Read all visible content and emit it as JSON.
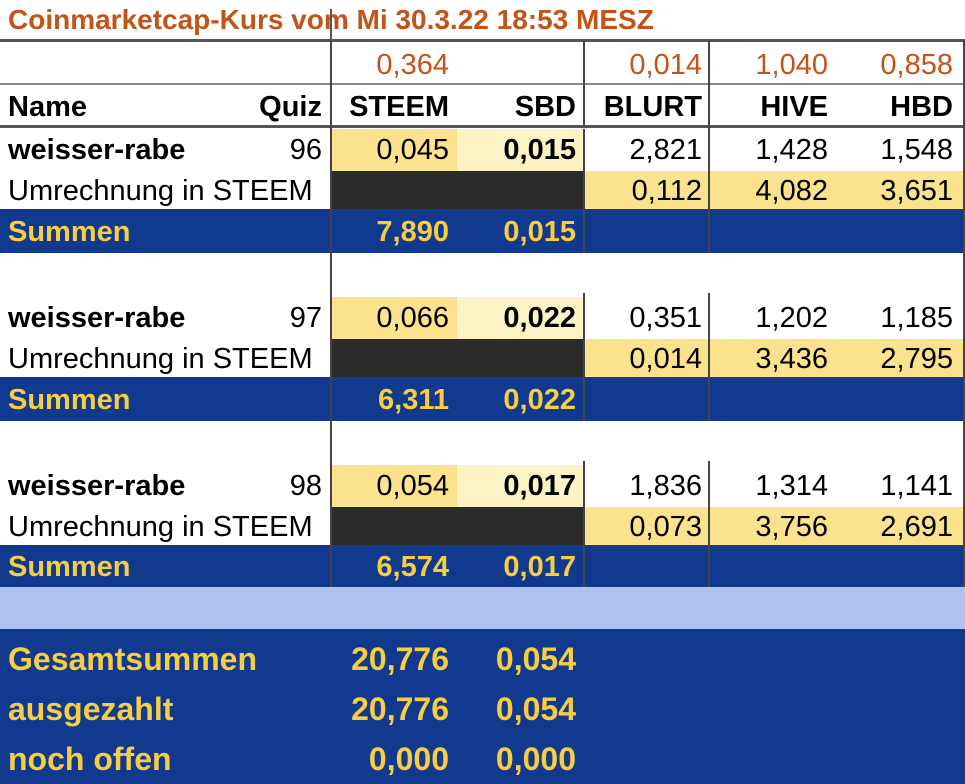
{
  "title": "Coinmarketcap-Kurs vom Mi 30.3.22 18:53 MESZ",
  "rates": {
    "steem": "0,364",
    "blurt": "0,014",
    "hive": "1,040",
    "hbd": "0,858"
  },
  "header": {
    "name": "Name",
    "quiz": "Quiz",
    "steem": "STEEM",
    "sbd": "SBD",
    "blurt": "BLURT",
    "hive": "HIVE",
    "hbd": "HBD"
  },
  "blocks": [
    {
      "name": "weisser-rabe",
      "quiz": "96",
      "steem": "0,045",
      "sbd": "0,015",
      "blurt": "2,821",
      "hive": "1,428",
      "hbd": "1,548",
      "conv_label": "Umrechnung in STEEM",
      "conv_blurt": "0,112",
      "conv_hive": "4,082",
      "conv_hbd": "3,651",
      "sum_label": "Summen",
      "sum_steem": "7,890",
      "sum_sbd": "0,015"
    },
    {
      "name": "weisser-rabe",
      "quiz": "97",
      "steem": "0,066",
      "sbd": "0,022",
      "blurt": "0,351",
      "hive": "1,202",
      "hbd": "1,185",
      "conv_label": "Umrechnung in STEEM",
      "conv_blurt": "0,014",
      "conv_hive": "3,436",
      "conv_hbd": "2,795",
      "sum_label": "Summen",
      "sum_steem": "6,311",
      "sum_sbd": "0,022"
    },
    {
      "name": "weisser-rabe",
      "quiz": "98",
      "steem": "0,054",
      "sbd": "0,017",
      "blurt": "1,836",
      "hive": "1,314",
      "hbd": "1,141",
      "conv_label": "Umrechnung in STEEM",
      "conv_blurt": "0,073",
      "conv_hive": "3,756",
      "conv_hbd": "2,691",
      "sum_label": "Summen",
      "sum_steem": "6,574",
      "sum_sbd": "0,017"
    }
  ],
  "totals": [
    {
      "label": "Gesamtsummen",
      "steem": "20,776",
      "sbd": "0,054"
    },
    {
      "label": "ausgezahlt",
      "steem": "20,776",
      "sbd": "0,054"
    },
    {
      "label": "noch offen",
      "steem": "0,000",
      "sbd": "0,000"
    }
  ],
  "colors": {
    "accent_orange": "#c2541a",
    "blue": "#113a8f",
    "light_blue": "#adc3ec",
    "yellow": "#fbe38d",
    "gold_text": "#f7cd42"
  }
}
